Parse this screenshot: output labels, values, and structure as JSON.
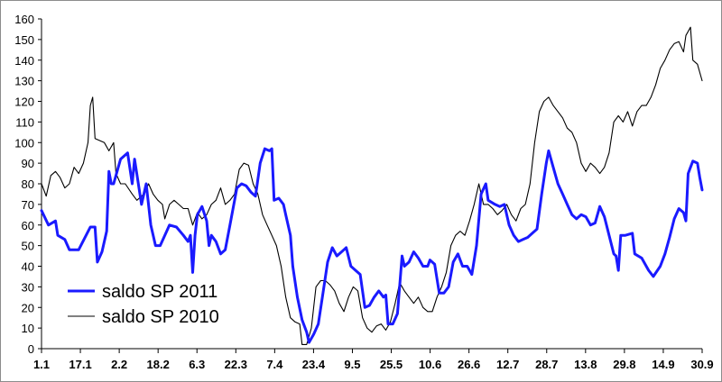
{
  "chart_data": {
    "type": "line",
    "title": "",
    "xlabel": "",
    "ylabel": "",
    "ylim": [
      0,
      160
    ],
    "yticks": [
      0,
      10,
      20,
      30,
      40,
      50,
      60,
      70,
      80,
      90,
      100,
      110,
      120,
      130,
      140,
      150,
      160
    ],
    "x_tick_labels": [
      "1.1",
      "17.1",
      "2.2",
      "18.2",
      "6.3",
      "22.3",
      "7.4",
      "23.4",
      "9.5",
      "25.5",
      "10.6",
      "26.6",
      "12.7",
      "28.7",
      "13.8",
      "29.8",
      "14.9",
      "30.9"
    ],
    "grid": false,
    "legend_position": "bottom-left",
    "series": [
      {
        "name": "saldo SP 2011",
        "color": "#1a1aff",
        "points": [
          [
            0,
            67
          ],
          [
            3,
            60
          ],
          [
            6,
            62
          ],
          [
            7,
            55
          ],
          [
            10,
            53
          ],
          [
            12,
            48
          ],
          [
            16,
            48
          ],
          [
            21,
            59
          ],
          [
            23,
            59
          ],
          [
            24,
            42
          ],
          [
            26,
            47
          ],
          [
            28,
            57
          ],
          [
            29,
            86
          ],
          [
            30,
            80
          ],
          [
            31,
            80
          ],
          [
            34,
            92
          ],
          [
            37,
            95
          ],
          [
            39,
            80
          ],
          [
            40,
            92
          ],
          [
            43,
            70
          ],
          [
            45,
            80
          ],
          [
            47,
            60
          ],
          [
            49,
            50
          ],
          [
            51,
            50
          ],
          [
            55,
            60
          ],
          [
            58,
            59
          ],
          [
            61,
            55
          ],
          [
            63,
            52
          ],
          [
            64,
            55
          ],
          [
            65,
            37
          ],
          [
            66,
            55
          ],
          [
            67,
            65
          ],
          [
            69,
            69
          ],
          [
            71,
            62
          ],
          [
            72,
            50
          ],
          [
            73,
            55
          ],
          [
            75,
            52
          ],
          [
            77,
            46
          ],
          [
            79,
            48
          ],
          [
            81,
            60
          ],
          [
            84,
            78
          ],
          [
            86,
            80
          ],
          [
            88,
            79
          ],
          [
            90,
            76
          ],
          [
            92,
            74
          ],
          [
            94,
            90
          ],
          [
            96,
            97
          ],
          [
            98,
            96
          ],
          [
            99,
            97
          ],
          [
            100,
            72
          ],
          [
            102,
            73
          ],
          [
            104,
            70
          ],
          [
            105,
            65
          ],
          [
            107,
            55
          ],
          [
            108,
            40
          ],
          [
            110,
            25
          ],
          [
            112,
            14
          ],
          [
            114,
            8
          ],
          [
            115,
            3
          ],
          [
            117,
            7
          ],
          [
            119,
            12
          ],
          [
            121,
            27
          ],
          [
            123,
            42
          ],
          [
            125,
            49
          ],
          [
            127,
            45
          ],
          [
            129,
            47
          ],
          [
            131,
            49
          ],
          [
            133,
            40
          ],
          [
            135,
            38
          ],
          [
            137,
            36
          ],
          [
            139,
            20
          ],
          [
            141,
            21
          ],
          [
            143,
            25
          ],
          [
            145,
            28
          ],
          [
            147,
            25
          ],
          [
            148,
            26
          ],
          [
            149,
            12
          ],
          [
            151,
            12
          ],
          [
            153,
            17
          ],
          [
            155,
            45
          ],
          [
            156,
            40
          ],
          [
            158,
            42
          ],
          [
            160,
            47
          ],
          [
            162,
            44
          ],
          [
            164,
            40
          ],
          [
            166,
            40
          ],
          [
            167,
            43
          ],
          [
            169,
            41
          ],
          [
            171,
            27
          ],
          [
            173,
            27
          ],
          [
            175,
            30
          ],
          [
            177,
            42
          ],
          [
            179,
            46
          ],
          [
            181,
            40
          ],
          [
            183,
            40
          ],
          [
            185,
            36
          ],
          [
            187,
            50
          ],
          [
            189,
            75
          ],
          [
            191,
            80
          ],
          [
            192,
            72
          ],
          [
            195,
            70
          ],
          [
            197,
            69
          ],
          [
            199,
            70
          ],
          [
            201,
            60
          ],
          [
            203,
            55
          ],
          [
            205,
            52
          ],
          [
            207,
            53
          ],
          [
            209,
            54
          ],
          [
            211,
            56
          ],
          [
            213,
            58
          ],
          [
            215,
            75
          ],
          [
            217,
            90
          ],
          [
            218,
            96
          ],
          [
            220,
            88
          ],
          [
            222,
            80
          ],
          [
            224,
            75
          ],
          [
            226,
            70
          ],
          [
            228,
            65
          ],
          [
            230,
            63
          ],
          [
            232,
            65
          ],
          [
            234,
            64
          ],
          [
            236,
            60
          ],
          [
            238,
            61
          ],
          [
            240,
            69
          ],
          [
            242,
            64
          ],
          [
            244,
            55
          ],
          [
            246,
            46
          ],
          [
            247,
            45
          ],
          [
            248,
            38
          ],
          [
            249,
            55
          ],
          [
            251,
            55
          ],
          [
            254,
            56
          ],
          [
            255,
            46
          ],
          [
            258,
            44
          ],
          [
            261,
            38
          ],
          [
            263,
            35
          ],
          [
            266,
            40
          ],
          [
            268,
            46
          ],
          [
            270,
            54
          ],
          [
            272,
            63
          ],
          [
            274,
            68
          ],
          [
            276,
            66
          ],
          [
            277,
            62
          ],
          [
            278,
            85
          ],
          [
            280,
            91
          ],
          [
            282,
            90
          ],
          [
            283,
            83
          ],
          [
            284,
            77
          ]
        ]
      },
      {
        "name": "saldo SP 2010",
        "color": "#000000",
        "points": [
          [
            0,
            80
          ],
          [
            2,
            74
          ],
          [
            4,
            84
          ],
          [
            6,
            86
          ],
          [
            8,
            83
          ],
          [
            10,
            78
          ],
          [
            12,
            80
          ],
          [
            14,
            88
          ],
          [
            16,
            85
          ],
          [
            18,
            90
          ],
          [
            20,
            100
          ],
          [
            21,
            118
          ],
          [
            22,
            122
          ],
          [
            23,
            102
          ],
          [
            25,
            101
          ],
          [
            27,
            100
          ],
          [
            29,
            96
          ],
          [
            31,
            100
          ],
          [
            32,
            85
          ],
          [
            34,
            80
          ],
          [
            36,
            80
          ],
          [
            39,
            75
          ],
          [
            41,
            72
          ],
          [
            44,
            75
          ],
          [
            46,
            80
          ],
          [
            48,
            75
          ],
          [
            50,
            72
          ],
          [
            52,
            70
          ],
          [
            53,
            63
          ],
          [
            55,
            70
          ],
          [
            57,
            72
          ],
          [
            59,
            70
          ],
          [
            61,
            68
          ],
          [
            63,
            68
          ],
          [
            65,
            60
          ],
          [
            67,
            66
          ],
          [
            69,
            63
          ],
          [
            71,
            65
          ],
          [
            73,
            70
          ],
          [
            75,
            72
          ],
          [
            77,
            78
          ],
          [
            79,
            70
          ],
          [
            81,
            72
          ],
          [
            83,
            75
          ],
          [
            85,
            87
          ],
          [
            87,
            90
          ],
          [
            89,
            89
          ],
          [
            91,
            80
          ],
          [
            93,
            75
          ],
          [
            95,
            65
          ],
          [
            97,
            60
          ],
          [
            99,
            55
          ],
          [
            101,
            50
          ],
          [
            103,
            40
          ],
          [
            105,
            25
          ],
          [
            107,
            15
          ],
          [
            109,
            13
          ],
          [
            111,
            12
          ],
          [
            112,
            2
          ],
          [
            114,
            2
          ],
          [
            116,
            10
          ],
          [
            118,
            30
          ],
          [
            120,
            33
          ],
          [
            122,
            33
          ],
          [
            124,
            31
          ],
          [
            126,
            28
          ],
          [
            128,
            22
          ],
          [
            130,
            18
          ],
          [
            132,
            25
          ],
          [
            134,
            30
          ],
          [
            136,
            28
          ],
          [
            138,
            15
          ],
          [
            140,
            10
          ],
          [
            142,
            8
          ],
          [
            144,
            11
          ],
          [
            146,
            12
          ],
          [
            148,
            9
          ],
          [
            150,
            13
          ],
          [
            152,
            22
          ],
          [
            154,
            32
          ],
          [
            156,
            28
          ],
          [
            158,
            25
          ],
          [
            160,
            22
          ],
          [
            162,
            25
          ],
          [
            164,
            20
          ],
          [
            166,
            18
          ],
          [
            168,
            18
          ],
          [
            170,
            25
          ],
          [
            172,
            30
          ],
          [
            174,
            37
          ],
          [
            176,
            50
          ],
          [
            178,
            55
          ],
          [
            180,
            57
          ],
          [
            182,
            55
          ],
          [
            184,
            62
          ],
          [
            186,
            70
          ],
          [
            188,
            80
          ],
          [
            190,
            70
          ],
          [
            192,
            70
          ],
          [
            194,
            68
          ],
          [
            196,
            65
          ],
          [
            198,
            67
          ],
          [
            200,
            70
          ],
          [
            202,
            65
          ],
          [
            204,
            62
          ],
          [
            206,
            68
          ],
          [
            208,
            70
          ],
          [
            210,
            80
          ],
          [
            212,
            100
          ],
          [
            214,
            115
          ],
          [
            216,
            120
          ],
          [
            218,
            122
          ],
          [
            220,
            118
          ],
          [
            222,
            115
          ],
          [
            224,
            112
          ],
          [
            226,
            107
          ],
          [
            228,
            105
          ],
          [
            230,
            100
          ],
          [
            232,
            90
          ],
          [
            234,
            86
          ],
          [
            236,
            90
          ],
          [
            238,
            88
          ],
          [
            240,
            85
          ],
          [
            242,
            88
          ],
          [
            244,
            95
          ],
          [
            246,
            110
          ],
          [
            248,
            113
          ],
          [
            250,
            110
          ],
          [
            252,
            115
          ],
          [
            254,
            108
          ],
          [
            256,
            115
          ],
          [
            258,
            118
          ],
          [
            260,
            118
          ],
          [
            262,
            122
          ],
          [
            264,
            128
          ],
          [
            266,
            136
          ],
          [
            268,
            140
          ],
          [
            270,
            145
          ],
          [
            272,
            148
          ],
          [
            274,
            149
          ],
          [
            276,
            144
          ],
          [
            277,
            152
          ],
          [
            279,
            156
          ],
          [
            280,
            140
          ],
          [
            282,
            138
          ],
          [
            284,
            130
          ]
        ]
      }
    ]
  }
}
